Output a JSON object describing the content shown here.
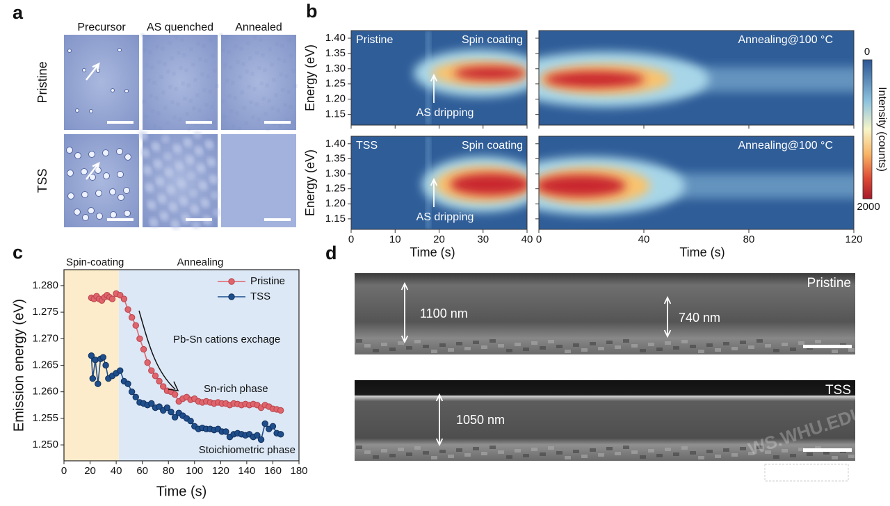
{
  "panel_a": {
    "label": "a",
    "columns": [
      "Precursor",
      "AS quenched",
      "Annealed"
    ],
    "rows": [
      "Pristine",
      "TSS"
    ]
  },
  "panel_d": {
    "label": "d",
    "samples": [
      {
        "name": "Pristine",
        "thicknesses": [
          "1100 nm",
          "740 nm"
        ]
      },
      {
        "name": "TSS",
        "thicknesses": [
          "1050 nm"
        ]
      }
    ],
    "watermark": "WS.WHU.EDU"
  },
  "chart_data": [
    {
      "type": "heatmap",
      "label": "b",
      "ylabel": "Energy (eV)",
      "ylim": [
        1.115,
        1.425
      ],
      "yticks": [
        1.15,
        {
          "value": 1.2,
          "label": "1.20"
        },
        1.25,
        {
          "value": 1.3,
          "label": "1.30"
        },
        1.35,
        {
          "value": 1.4,
          "label": "1.40"
        }
      ],
      "panels": [
        {
          "xlim": [
            0,
            40
          ],
          "xticks": [
            0,
            10,
            20,
            30,
            40
          ],
          "xlabel": "Time (s)"
        },
        {
          "xlim": [
            0,
            120
          ],
          "xticks": [
            0,
            40,
            80,
            120
          ],
          "xlabel": "Time (s)"
        }
      ],
      "rows": [
        {
          "annotations": [
            "Pristine",
            "Spin coating",
            "AS dripping",
            "Annealing@100 °C"
          ]
        },
        {
          "annotations": [
            "TSS",
            "Spin coating",
            "AS dripping",
            "Annealing@100 °C"
          ]
        }
      ],
      "colorbar": {
        "label": "Intensity (counts)",
        "range": [
          0,
          2000
        ]
      }
    },
    {
      "type": "line",
      "label": "c",
      "xlabel": "Time (s)",
      "ylabel": "Emission energy (eV)",
      "xlim": [
        0,
        180
      ],
      "xticks": [
        0,
        20,
        40,
        60,
        80,
        100,
        120,
        140,
        160,
        180
      ],
      "ylim": [
        1.247,
        1.283
      ],
      "yticks": [
        {
          "value": 1.25,
          "label": "1.250"
        },
        1.255,
        {
          "value": 1.26,
          "label": "1.260"
        },
        1.265,
        {
          "value": 1.27,
          "label": "1.270"
        },
        1.275,
        {
          "value": 1.28,
          "label": "1.280"
        }
      ],
      "regions": [
        {
          "label": "Spin-coating",
          "xrange": [
            0,
            42
          ],
          "color": "#fdeccb"
        },
        {
          "label": "Annealing",
          "xrange": [
            42,
            180
          ],
          "color": "#dce8f6"
        }
      ],
      "annotations": [
        "Pb-Sn cations exchage",
        "Sn-rich phase",
        "Stoichiometric phase"
      ],
      "legend": "upper right",
      "series": [
        {
          "name": "Pristine",
          "color": "#e0646c",
          "x": [
            21,
            23,
            25,
            27,
            29,
            31,
            33,
            35,
            37,
            40,
            43,
            46,
            49,
            52,
            55,
            58,
            61,
            64,
            67,
            70,
            73,
            76,
            79,
            82,
            85,
            88,
            91,
            94,
            97,
            100,
            103,
            106,
            109,
            112,
            115,
            118,
            121,
            124,
            127,
            130,
            133,
            136,
            139,
            142,
            145,
            148,
            151,
            154,
            157,
            160,
            163,
            166
          ],
          "values": [
            1.2777,
            1.2775,
            1.278,
            1.2775,
            1.2772,
            1.2778,
            1.2782,
            1.2778,
            1.2775,
            1.2785,
            1.2782,
            1.2775,
            1.2755,
            1.274,
            1.2725,
            1.27,
            1.268,
            1.2655,
            1.264,
            1.263,
            1.262,
            1.261,
            1.2602,
            1.26,
            1.2595,
            1.2582,
            1.2587,
            1.259,
            1.2585,
            1.2587,
            1.2582,
            1.258,
            1.2582,
            1.258,
            1.2578,
            1.258,
            1.2578,
            1.2578,
            1.2575,
            1.2578,
            1.2577,
            1.2575,
            1.2577,
            1.2575,
            1.2577,
            1.2575,
            1.257,
            1.2575,
            1.2572,
            1.2568,
            1.2567,
            1.2565
          ]
        },
        {
          "name": "TSS",
          "color": "#1f4e8c",
          "x": [
            21,
            22,
            24,
            26,
            28,
            30,
            32,
            34,
            37,
            40,
            43,
            46,
            49,
            52,
            55,
            58,
            61,
            64,
            67,
            70,
            73,
            76,
            79,
            82,
            85,
            88,
            91,
            94,
            97,
            100,
            103,
            106,
            109,
            112,
            115,
            118,
            121,
            124,
            127,
            130,
            133,
            136,
            139,
            142,
            145,
            148,
            151,
            154,
            157,
            160,
            163,
            166
          ],
          "values": [
            1.2668,
            1.2625,
            1.266,
            1.2615,
            1.2662,
            1.2665,
            1.265,
            1.2625,
            1.263,
            1.2635,
            1.264,
            1.262,
            1.2615,
            1.26,
            1.259,
            1.258,
            1.2578,
            1.2575,
            1.2578,
            1.257,
            1.2572,
            1.2565,
            1.257,
            1.2562,
            1.2552,
            1.256,
            1.2555,
            1.255,
            1.2545,
            1.2535,
            1.253,
            1.2532,
            1.253,
            1.253,
            1.2528,
            1.253,
            1.2525,
            1.2525,
            1.2515,
            1.252,
            1.2522,
            1.252,
            1.2518,
            1.252,
            1.2515,
            1.2518,
            1.251,
            1.254,
            1.253,
            1.2535,
            1.2522,
            1.252
          ]
        }
      ]
    }
  ]
}
